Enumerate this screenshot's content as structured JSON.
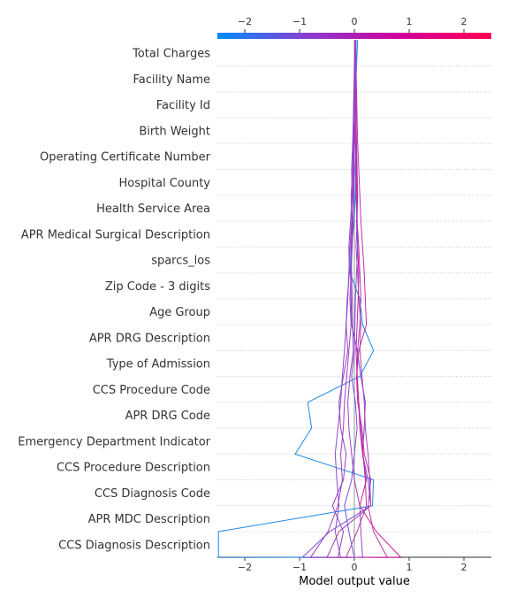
{
  "chart_data": {
    "type": "line",
    "title": "",
    "xlabel": "Model output value",
    "ylabel": "",
    "xlim": [
      -2.5,
      2.5
    ],
    "x_ticks": [
      "−2",
      "−1",
      "0",
      "1",
      "2"
    ],
    "x_tick_values": [
      -2,
      -1,
      0,
      1,
      2
    ],
    "features": [
      "Total Charges",
      "Facility Name",
      "Facility Id",
      "Birth Weight",
      "Operating Certificate Number",
      "Hospital County",
      "Health Service Area",
      "APR Medical Surgical Description",
      "sparcs_los",
      "Zip Code - 3 digits",
      "Age Group",
      "APR DRG Description",
      "Type of Admission",
      "CCS Procedure Code",
      "APR DRG Code",
      "Emergency Department Indicator",
      "CCS Procedure Description",
      "CCS Diagnosis Code",
      "APR MDC Description",
      "CCS Diagnosis Description"
    ],
    "grid": true,
    "colorbar": {
      "position": "top",
      "colors": [
        "#008bfb",
        "#8c3cd0",
        "#d0009a",
        "#ff0052"
      ],
      "range": [
        -2.5,
        2.5
      ]
    },
    "series": [
      {
        "color": "#1e88e5",
        "values": [
          0.04,
          0.02,
          0.03,
          0.02,
          0.03,
          0.02,
          0.0,
          -0.06,
          -0.08,
          0.1,
          0.15,
          0.35,
          0.1,
          -0.85,
          -0.78,
          -1.08,
          0.35,
          0.33,
          -2.48,
          -2.48
        ]
      },
      {
        "color": "#6a4ed2",
        "values": [
          0.02,
          0.02,
          0.01,
          0.0,
          0.0,
          -0.01,
          -0.03,
          -0.05,
          -0.07,
          -0.06,
          -0.05,
          0.05,
          0.12,
          0.2,
          0.18,
          0.15,
          0.25,
          0.3,
          -0.45,
          -0.95
        ]
      },
      {
        "color": "#9b3fc6",
        "values": [
          0.01,
          0.01,
          0.0,
          -0.02,
          -0.03,
          -0.06,
          -0.05,
          -0.08,
          -0.1,
          -0.12,
          -0.15,
          -0.12,
          -0.2,
          -0.28,
          -0.25,
          -0.15,
          -0.2,
          -0.4,
          -0.2,
          -0.3
        ]
      },
      {
        "color": "#8a47cc",
        "values": [
          0.0,
          -0.01,
          -0.02,
          -0.03,
          -0.05,
          -0.04,
          -0.07,
          -0.1,
          -0.09,
          -0.13,
          -0.15,
          -0.18,
          -0.22,
          -0.25,
          -0.3,
          -0.35,
          -0.32,
          -0.28,
          -0.35,
          -0.25
        ]
      },
      {
        "color": "#a53bbd",
        "values": [
          0.01,
          0.0,
          0.0,
          -0.01,
          -0.02,
          -0.03,
          -0.02,
          -0.04,
          -0.06,
          -0.08,
          -0.06,
          -0.1,
          -0.14,
          -0.18,
          -0.2,
          -0.25,
          -0.22,
          -0.3,
          -0.48,
          -0.8
        ]
      },
      {
        "color": "#c02fa8",
        "values": [
          0.03,
          0.04,
          0.05,
          0.06,
          0.08,
          0.1,
          0.12,
          0.15,
          0.18,
          0.2,
          0.22,
          0.08,
          0.04,
          0.06,
          0.14,
          0.18,
          0.3,
          0.25,
          0.35,
          0.6
        ]
      },
      {
        "color": "#b333b0",
        "values": [
          0.02,
          0.03,
          0.03,
          0.04,
          0.05,
          0.06,
          0.05,
          0.08,
          0.1,
          0.12,
          0.1,
          0.06,
          0.05,
          0.08,
          0.12,
          0.16,
          0.2,
          0.22,
          0.05,
          -0.15
        ]
      },
      {
        "color": "#cc1c9c",
        "values": [
          0.02,
          0.02,
          0.01,
          0.02,
          0.04,
          0.05,
          0.04,
          0.06,
          0.08,
          0.07,
          0.05,
          0.03,
          0.05,
          0.08,
          0.1,
          0.15,
          0.22,
          0.1,
          0.4,
          0.85
        ]
      },
      {
        "color": "#7a52d6",
        "values": [
          0.03,
          0.03,
          0.02,
          0.03,
          0.02,
          0.03,
          0.05,
          0.06,
          0.04,
          0.02,
          0.01,
          0.0,
          -0.05,
          0.02,
          0.05,
          0.0,
          -0.05,
          -0.18,
          -0.1,
          0.0
        ]
      },
      {
        "color": "#9e40c4",
        "values": [
          0.01,
          0.01,
          0.0,
          0.0,
          -0.01,
          -0.02,
          -0.04,
          -0.06,
          -0.05,
          -0.04,
          -0.03,
          -0.02,
          -0.08,
          -0.12,
          -0.1,
          -0.05,
          0.0,
          0.1,
          0.12,
          0.15
        ]
      },
      {
        "color": "#a93cb9",
        "values": [
          0.02,
          0.02,
          0.02,
          0.03,
          0.03,
          0.04,
          0.05,
          0.03,
          0.06,
          0.08,
          0.12,
          0.1,
          0.14,
          0.18,
          0.2,
          0.25,
          0.28,
          0.3,
          -0.28,
          -0.5
        ]
      }
    ]
  }
}
